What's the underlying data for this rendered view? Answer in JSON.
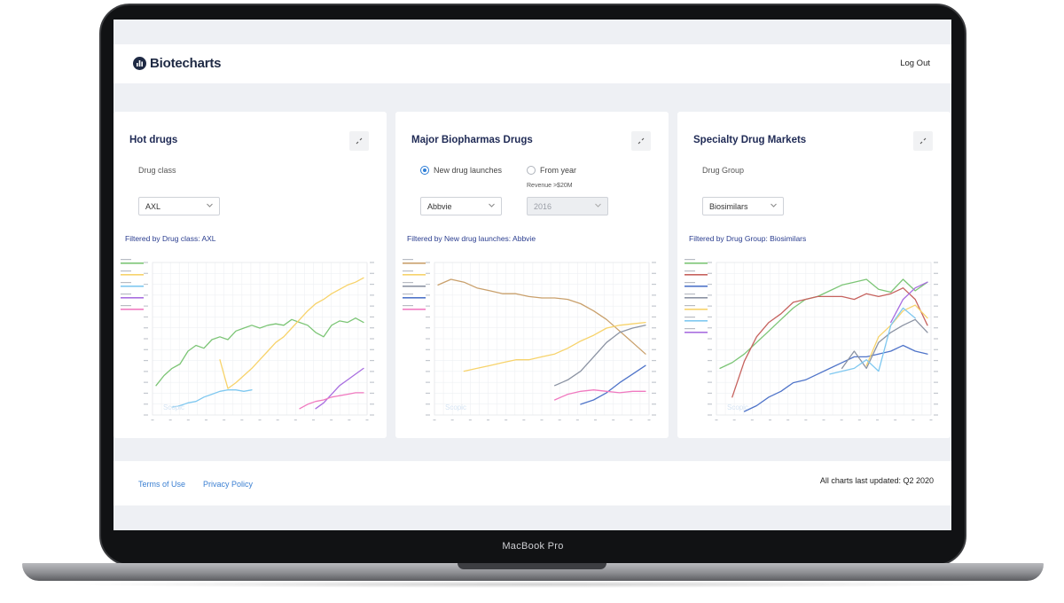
{
  "device": {
    "label": "MacBook Pro"
  },
  "header": {
    "brand": "Biotecharts",
    "logout_label": "Log Out"
  },
  "cards": [
    {
      "title": "Hot drugs",
      "field_label": "Drug class",
      "select_value": "AXL",
      "filter_note": "Filtered by Drug class: AXL",
      "watermark": "Scopic"
    },
    {
      "title": "Major Biopharmas Drugs",
      "radio_new_label": "New drug launches",
      "radio_year_label": "From year",
      "revenue_label": "Revenue >$20M",
      "select_value": "Abbvie",
      "year_value": "2016",
      "filter_note": "Filtered by New drug launches: Abbvie",
      "watermark": "Scopic"
    },
    {
      "title": "Specialty Drug Markets",
      "field_label": "Drug Group",
      "select_value": "Biosimilars",
      "filter_note": "Filtered by Drug Group: Biosimilars",
      "watermark": "Scopic"
    }
  ],
  "footer": {
    "terms_label": "Terms of Use",
    "privacy_label": "Privacy Policy",
    "updated_text": "All charts last updated: Q2 2020"
  },
  "colors": {
    "green": "#7cc576",
    "yellow": "#f7d36b",
    "blue": "#7fc8f0",
    "purple": "#a86ee0",
    "pink": "#f07ac0",
    "tan": "#c9a06c",
    "slate": "#8b93a3",
    "navy": "#4f74c9",
    "red": "#c6625e"
  },
  "chart_data": [
    {
      "type": "line",
      "series": [
        {
          "color": "#7cc576",
          "values": [
            0.18,
            0.25,
            0.3,
            0.33,
            0.42,
            0.46,
            0.44,
            0.5,
            0.52,
            0.5,
            0.56,
            0.58,
            0.6,
            0.58,
            0.6,
            0.61,
            0.6,
            0.64,
            0.62,
            0.6,
            0.55,
            0.52,
            0.6,
            0.63,
            0.62,
            0.65,
            0.62
          ]
        },
        {
          "color": "#f7d36b",
          "values": [
            null,
            null,
            null,
            null,
            null,
            null,
            null,
            null,
            0.36,
            0.16,
            0.2,
            0.25,
            0.3,
            0.36,
            0.42,
            0.48,
            0.52,
            0.58,
            0.64,
            0.7,
            0.75,
            0.78,
            0.82,
            0.85,
            0.88,
            0.9,
            0.93
          ]
        },
        {
          "color": "#7fc8f0",
          "values": [
            null,
            null,
            0.03,
            0.04,
            0.06,
            0.07,
            0.1,
            0.12,
            0.14,
            0.15,
            0.15,
            0.14,
            0.15,
            null,
            null,
            null,
            null,
            null,
            null,
            null,
            null,
            null,
            null,
            null,
            null,
            null,
            null
          ]
        },
        {
          "color": "#a86ee0",
          "values": [
            null,
            null,
            null,
            null,
            null,
            null,
            null,
            null,
            null,
            null,
            null,
            null,
            null,
            null,
            null,
            null,
            null,
            null,
            null,
            null,
            0.02,
            0.06,
            0.12,
            0.18,
            0.22,
            0.26,
            0.3
          ]
        },
        {
          "color": "#f07ac0",
          "values": [
            null,
            null,
            null,
            null,
            null,
            null,
            null,
            null,
            null,
            null,
            null,
            null,
            null,
            null,
            null,
            null,
            null,
            null,
            0.02,
            0.05,
            0.07,
            0.08,
            0.1,
            0.11,
            0.12,
            0.13,
            0.13
          ]
        }
      ]
    },
    {
      "type": "line",
      "series": [
        {
          "color": "#c9a06c",
          "values": [
            0.88,
            0.92,
            0.9,
            0.86,
            0.84,
            0.82,
            0.82,
            0.8,
            0.79,
            0.79,
            0.78,
            0.75,
            0.7,
            0.64,
            0.56,
            0.48,
            0.4
          ]
        },
        {
          "color": "#f7d36b",
          "values": [
            null,
            null,
            0.28,
            0.3,
            0.32,
            0.34,
            0.36,
            0.36,
            0.38,
            0.4,
            0.44,
            0.49,
            0.53,
            0.58,
            0.6,
            0.61,
            0.62
          ]
        },
        {
          "color": "#8b93a3",
          "values": [
            null,
            null,
            null,
            null,
            null,
            null,
            null,
            null,
            null,
            0.18,
            0.22,
            0.28,
            0.38,
            0.48,
            0.55,
            0.58,
            0.6
          ]
        },
        {
          "color": "#4f74c9",
          "values": [
            null,
            null,
            null,
            null,
            null,
            null,
            null,
            null,
            null,
            null,
            null,
            0.05,
            0.08,
            0.13,
            0.2,
            0.26,
            0.32
          ]
        },
        {
          "color": "#f07ac0",
          "values": [
            null,
            null,
            null,
            null,
            null,
            null,
            null,
            null,
            null,
            0.08,
            0.12,
            0.14,
            0.15,
            0.14,
            0.13,
            0.14,
            0.14
          ]
        }
      ]
    },
    {
      "type": "line",
      "series": [
        {
          "color": "#7cc576",
          "values": [
            0.3,
            0.34,
            0.4,
            0.48,
            0.56,
            0.64,
            0.72,
            0.78,
            0.8,
            0.84,
            0.88,
            0.9,
            0.92,
            0.85,
            0.83,
            0.92,
            0.84,
            0.9
          ]
        },
        {
          "color": "#c6625e",
          "values": [
            null,
            0.1,
            0.35,
            0.52,
            0.62,
            0.68,
            0.76,
            0.78,
            0.8,
            0.8,
            0.8,
            0.78,
            0.82,
            0.8,
            0.82,
            0.86,
            0.78,
            0.6
          ]
        },
        {
          "color": "#4f74c9",
          "values": [
            null,
            null,
            0.0,
            0.04,
            0.1,
            0.14,
            0.2,
            0.22,
            0.26,
            0.3,
            0.34,
            0.38,
            0.38,
            0.4,
            0.42,
            0.46,
            0.42,
            0.4
          ]
        },
        {
          "color": "#8b93a3",
          "values": [
            null,
            null,
            null,
            null,
            null,
            null,
            null,
            null,
            null,
            null,
            0.3,
            0.42,
            0.3,
            0.48,
            0.55,
            0.6,
            0.64,
            0.55
          ]
        },
        {
          "color": "#f7d36b",
          "values": [
            null,
            null,
            null,
            null,
            null,
            null,
            null,
            null,
            null,
            null,
            null,
            null,
            0.32,
            0.52,
            0.6,
            0.7,
            0.74,
            0.65
          ]
        },
        {
          "color": "#7fc8f0",
          "values": [
            null,
            null,
            null,
            null,
            null,
            null,
            null,
            null,
            null,
            0.26,
            0.28,
            0.3,
            0.36,
            0.28,
            0.6,
            0.72,
            0.65,
            null
          ]
        },
        {
          "color": "#a86ee0",
          "values": [
            null,
            null,
            null,
            null,
            null,
            null,
            null,
            null,
            null,
            null,
            null,
            null,
            null,
            null,
            0.62,
            0.78,
            0.86,
            0.9
          ]
        }
      ]
    }
  ]
}
